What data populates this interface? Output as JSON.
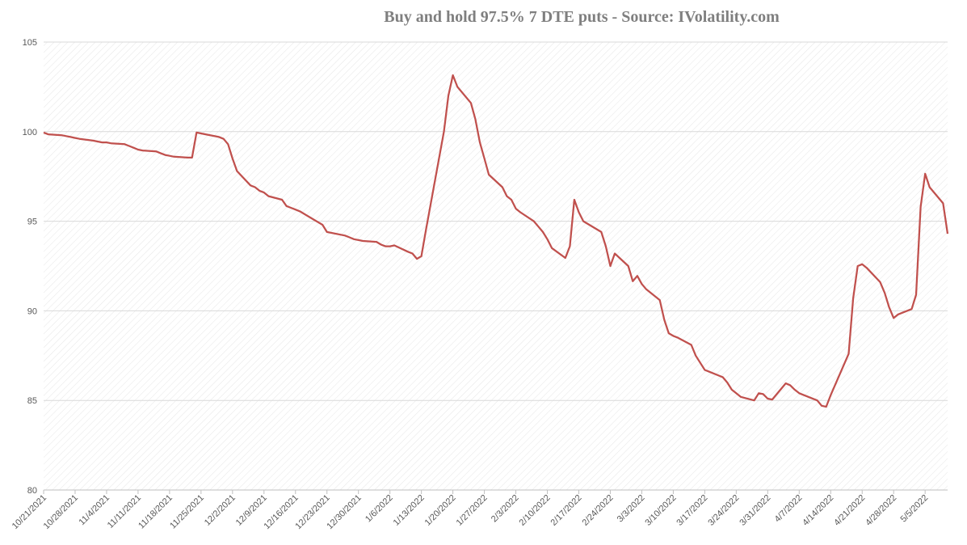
{
  "chart_data": {
    "type": "line",
    "title": "Buy and hold 97.5% 7 DTE puts - Source: IVolatility.com",
    "xlabel": "",
    "ylabel": "",
    "ylim": [
      80,
      105
    ],
    "y_ticks": [
      80,
      85,
      90,
      95,
      100,
      105
    ],
    "x_tick_labels": [
      "10/21/2021",
      "10/28/2021",
      "11/4/2021",
      "11/11/2021",
      "11/18/2021",
      "11/25/2021",
      "12/2/2021",
      "12/9/2021",
      "12/16/2021",
      "12/23/2021",
      "12/30/2021",
      "1/6/2022",
      "1/13/2022",
      "1/20/2022",
      "1/27/2022",
      "2/3/2022",
      "2/10/2022",
      "2/17/2022",
      "2/24/2022",
      "3/3/2022",
      "3/10/2022",
      "3/17/2022",
      "3/24/2022",
      "3/31/2022",
      "4/7/2022",
      "4/14/2022",
      "4/21/2022",
      "4/28/2022",
      "5/5/2022"
    ],
    "grid": true,
    "line_color": "#c0504d",
    "series": [
      {
        "name": "",
        "points": [
          [
            "2021-10-21",
            99.95
          ],
          [
            "2021-10-22",
            99.85
          ],
          [
            "2021-10-25",
            99.8
          ],
          [
            "2021-10-26",
            99.75
          ],
          [
            "2021-10-27",
            99.7
          ],
          [
            "2021-10-28",
            99.65
          ],
          [
            "2021-10-29",
            99.6
          ],
          [
            "2021-11-01",
            99.5
          ],
          [
            "2021-11-02",
            99.45
          ],
          [
            "2021-11-03",
            99.4
          ],
          [
            "2021-11-04",
            99.4
          ],
          [
            "2021-11-05",
            99.35
          ],
          [
            "2021-11-08",
            99.3
          ],
          [
            "2021-11-09",
            99.2
          ],
          [
            "2021-11-10",
            99.1
          ],
          [
            "2021-11-11",
            99.0
          ],
          [
            "2021-11-12",
            98.95
          ],
          [
            "2021-11-15",
            98.9
          ],
          [
            "2021-11-16",
            98.8
          ],
          [
            "2021-11-17",
            98.7
          ],
          [
            "2021-11-18",
            98.65
          ],
          [
            "2021-11-19",
            98.6
          ],
          [
            "2021-11-22",
            98.55
          ],
          [
            "2021-11-23",
            98.55
          ],
          [
            "2021-11-24",
            99.95
          ],
          [
            "2021-11-26",
            99.85
          ],
          [
            "2021-11-29",
            99.7
          ],
          [
            "2021-11-30",
            99.6
          ],
          [
            "2021-12-01",
            99.3
          ],
          [
            "2021-12-02",
            98.5
          ],
          [
            "2021-12-03",
            97.8
          ],
          [
            "2021-12-06",
            97.0
          ],
          [
            "2021-12-07",
            96.9
          ],
          [
            "2021-12-08",
            96.7
          ],
          [
            "2021-12-09",
            96.6
          ],
          [
            "2021-12-10",
            96.4
          ],
          [
            "2021-12-13",
            96.2
          ],
          [
            "2021-12-14",
            95.85
          ],
          [
            "2021-12-15",
            95.75
          ],
          [
            "2021-12-16",
            95.65
          ],
          [
            "2021-12-17",
            95.55
          ],
          [
            "2021-12-20",
            95.1
          ],
          [
            "2021-12-21",
            94.95
          ],
          [
            "2021-12-22",
            94.8
          ],
          [
            "2021-12-23",
            94.4
          ],
          [
            "2021-12-27",
            94.2
          ],
          [
            "2021-12-28",
            94.1
          ],
          [
            "2021-12-29",
            94.0
          ],
          [
            "2021-12-30",
            93.95
          ],
          [
            "2021-12-31",
            93.9
          ],
          [
            "2022-01-03",
            93.85
          ],
          [
            "2022-01-04",
            93.7
          ],
          [
            "2022-01-05",
            93.6
          ],
          [
            "2022-01-06",
            93.6
          ],
          [
            "2022-01-07",
            93.65
          ],
          [
            "2022-01-10",
            93.3
          ],
          [
            "2022-01-11",
            93.2
          ],
          [
            "2022-01-12",
            92.9
          ],
          [
            "2022-01-13",
            93.05
          ],
          [
            "2022-01-14",
            94.5
          ],
          [
            "2022-01-18",
            100.0
          ],
          [
            "2022-01-19",
            102.0
          ],
          [
            "2022-01-20",
            103.15
          ],
          [
            "2022-01-21",
            102.5
          ],
          [
            "2022-01-24",
            101.6
          ],
          [
            "2022-01-25",
            100.7
          ],
          [
            "2022-01-26",
            99.4
          ],
          [
            "2022-01-27",
            98.5
          ],
          [
            "2022-01-28",
            97.6
          ],
          [
            "2022-01-31",
            96.9
          ],
          [
            "2022-02-01",
            96.4
          ],
          [
            "2022-02-02",
            96.2
          ],
          [
            "2022-02-03",
            95.7
          ],
          [
            "2022-02-04",
            95.5
          ],
          [
            "2022-02-07",
            95.0
          ],
          [
            "2022-02-08",
            94.7
          ],
          [
            "2022-02-09",
            94.4
          ],
          [
            "2022-02-10",
            94.0
          ],
          [
            "2022-02-11",
            93.5
          ],
          [
            "2022-02-14",
            92.95
          ],
          [
            "2022-02-15",
            93.6
          ],
          [
            "2022-02-16",
            96.2
          ],
          [
            "2022-02-17",
            95.5
          ],
          [
            "2022-02-18",
            95.0
          ],
          [
            "2022-02-22",
            94.4
          ],
          [
            "2022-02-23",
            93.6
          ],
          [
            "2022-02-24",
            92.5
          ],
          [
            "2022-02-25",
            93.2
          ],
          [
            "2022-02-28",
            92.5
          ],
          [
            "2022-03-01",
            91.65
          ],
          [
            "2022-03-02",
            91.95
          ],
          [
            "2022-03-03",
            91.5
          ],
          [
            "2022-03-04",
            91.2
          ],
          [
            "2022-03-07",
            90.6
          ],
          [
            "2022-03-08",
            89.5
          ],
          [
            "2022-03-09",
            88.75
          ],
          [
            "2022-03-10",
            88.6
          ],
          [
            "2022-03-11",
            88.5
          ],
          [
            "2022-03-14",
            88.1
          ],
          [
            "2022-03-15",
            87.5
          ],
          [
            "2022-03-16",
            87.1
          ],
          [
            "2022-03-17",
            86.7
          ],
          [
            "2022-03-18",
            86.6
          ],
          [
            "2022-03-21",
            86.3
          ],
          [
            "2022-03-22",
            86.0
          ],
          [
            "2022-03-23",
            85.6
          ],
          [
            "2022-03-24",
            85.4
          ],
          [
            "2022-03-25",
            85.2
          ],
          [
            "2022-03-28",
            85.0
          ],
          [
            "2022-03-29",
            85.4
          ],
          [
            "2022-03-30",
            85.35
          ],
          [
            "2022-03-31",
            85.1
          ],
          [
            "2022-04-01",
            85.05
          ],
          [
            "2022-04-04",
            85.95
          ],
          [
            "2022-04-05",
            85.85
          ],
          [
            "2022-04-06",
            85.6
          ],
          [
            "2022-04-07",
            85.4
          ],
          [
            "2022-04-08",
            85.3
          ],
          [
            "2022-04-11",
            85.0
          ],
          [
            "2022-04-12",
            84.7
          ],
          [
            "2022-04-13",
            84.65
          ],
          [
            "2022-04-14",
            85.3
          ],
          [
            "2022-04-18",
            87.6
          ],
          [
            "2022-04-19",
            90.7
          ],
          [
            "2022-04-20",
            92.5
          ],
          [
            "2022-04-21",
            92.6
          ],
          [
            "2022-04-22",
            92.4
          ],
          [
            "2022-04-25",
            91.6
          ],
          [
            "2022-04-26",
            91.0
          ],
          [
            "2022-04-27",
            90.2
          ],
          [
            "2022-04-28",
            89.6
          ],
          [
            "2022-04-29",
            89.8
          ],
          [
            "2022-05-02",
            90.1
          ],
          [
            "2022-05-03",
            90.9
          ],
          [
            "2022-05-04",
            95.8
          ],
          [
            "2022-05-05",
            97.65
          ],
          [
            "2022-05-06",
            96.9
          ],
          [
            "2022-05-09",
            96.0
          ],
          [
            "2022-05-10",
            94.3
          ]
        ]
      }
    ]
  }
}
